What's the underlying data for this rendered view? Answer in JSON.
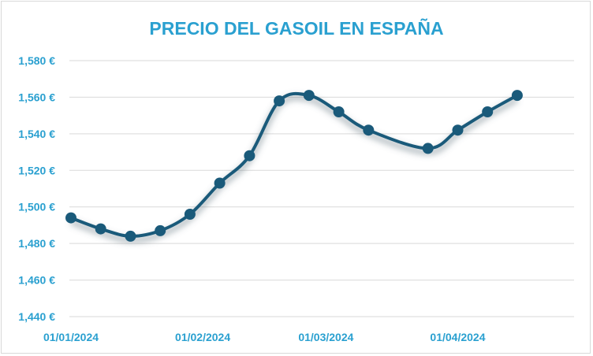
{
  "chart_data": {
    "type": "line",
    "title": "PRECIO DEL GASOIL EN ESPAÑA",
    "xlabel": "",
    "ylabel": "",
    "ylim": [
      1.44,
      1.58
    ],
    "y_ticks": [
      "1,440 €",
      "1,460 €",
      "1,480 €",
      "1,500 €",
      "1,520 €",
      "1,540 €",
      "1,560 €",
      "1,580 €"
    ],
    "y_tick_values": [
      1.44,
      1.46,
      1.48,
      1.5,
      1.52,
      1.54,
      1.56,
      1.58
    ],
    "x_range": [
      "2024-01-01",
      "2024-04-28"
    ],
    "x_ticks": [
      "01/01/2024",
      "01/02/2024",
      "01/03/2024",
      "01/04/2024"
    ],
    "x_tick_dates": [
      "2024-01-01",
      "2024-02-01",
      "2024-03-01",
      "2024-04-01"
    ],
    "grid": true,
    "legend": "none",
    "series": [
      {
        "color": "#1a5a7a",
        "points": [
          {
            "x": "2024-01-01",
            "y": 1.494
          },
          {
            "x": "2024-01-08",
            "y": 1.488
          },
          {
            "x": "2024-01-15",
            "y": 1.484
          },
          {
            "x": "2024-01-22",
            "y": 1.487
          },
          {
            "x": "2024-01-29",
            "y": 1.496
          },
          {
            "x": "2024-02-05",
            "y": 1.513
          },
          {
            "x": "2024-02-12",
            "y": 1.528
          },
          {
            "x": "2024-02-19",
            "y": 1.558
          },
          {
            "x": "2024-02-26",
            "y": 1.561
          },
          {
            "x": "2024-03-04",
            "y": 1.552
          },
          {
            "x": "2024-03-11",
            "y": 1.542
          },
          {
            "x": "2024-03-25",
            "y": 1.532
          },
          {
            "x": "2024-04-01",
            "y": 1.542
          },
          {
            "x": "2024-04-08",
            "y": 1.552
          },
          {
            "x": "2024-04-15",
            "y": 1.561
          }
        ]
      }
    ]
  },
  "colors": {
    "title": "#2aa0d0",
    "tick_labels": "#2aa0d0",
    "line": "#1a5a7a",
    "grid": "#d9d9d9"
  }
}
